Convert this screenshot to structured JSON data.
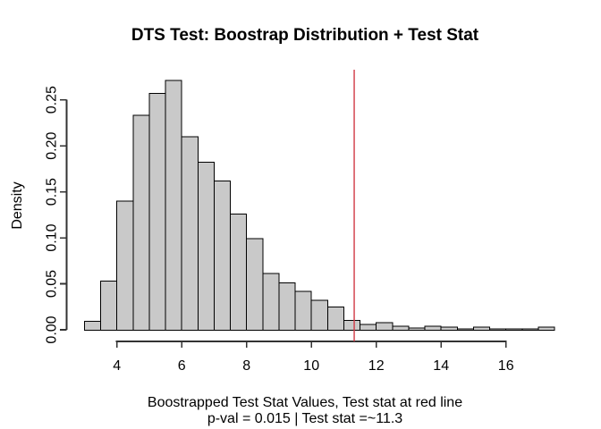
{
  "figure": {
    "title": "DTS Test: Boostrap Distribution + Test Stat",
    "x_label_line1": "Boostrapped Test Stat Values, Test stat at red line",
    "x_label_line2": "p-val = 0.015 | Test stat =~11.3",
    "y_label": "Density"
  },
  "chart_data": {
    "type": "bar",
    "subtype": "histogram",
    "title": "DTS Test: Boostrap Distribution + Test Stat",
    "xlabel": "Boostrapped Test Stat Values, Test stat at red line",
    "xlabel_line2": "p-val = 0.015 | Test stat =~11.3",
    "ylabel": "Density",
    "bin_start": 3.0,
    "bin_width": 0.5,
    "densities": [
      0.009,
      0.053,
      0.14,
      0.233,
      0.257,
      0.271,
      0.21,
      0.182,
      0.162,
      0.126,
      0.099,
      0.061,
      0.051,
      0.042,
      0.032,
      0.025,
      0.01,
      0.006,
      0.008,
      0.004,
      0.002,
      0.004,
      0.003,
      0.001,
      0.003,
      0.001,
      0.001,
      0.001,
      0.003
    ],
    "x_ticks": [
      4,
      6,
      8,
      10,
      12,
      14,
      16
    ],
    "x_tick_labels": [
      "4",
      "6",
      "8",
      "10",
      "12",
      "14",
      "16"
    ],
    "y_ticks": [
      0.0,
      0.05,
      0.1,
      0.15,
      0.2,
      0.25
    ],
    "y_tick_labels": [
      "0.00",
      "0.05",
      "0.10",
      "0.15",
      "0.20",
      "0.25"
    ],
    "xlim": [
      2.4,
      18.1
    ],
    "ylim": [
      0,
      0.28
    ],
    "grid": false,
    "legend": false,
    "test_stat_line_x": 11.32,
    "test_stat_label": "11.3",
    "p_value": 0.015,
    "colors": {
      "bar_fill": "#C9C9C9",
      "bar_stroke": "#000000",
      "axis": "#333333",
      "text": "#000000",
      "test_stat_line": "#D13845"
    }
  }
}
